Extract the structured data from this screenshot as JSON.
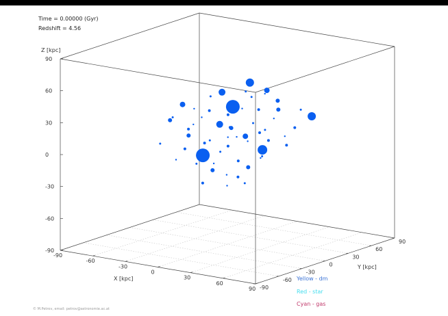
{
  "header": {
    "time_label": "Time = 0.00000 (Gyr)",
    "redshift_label": "Redshift = 4.56"
  },
  "chart_data": {
    "type": "scatter",
    "title": "",
    "projection": "3d",
    "grid": true,
    "zlabel": "Z [kpc]",
    "xlabel": "X [kpc]",
    "ylabel": "Y [kpc]",
    "zlim": [
      -90,
      90
    ],
    "xlim": [
      -90,
      90
    ],
    "ylim": [
      -90,
      90
    ],
    "z_ticks": [
      "90",
      "60",
      "30",
      "0",
      "-30",
      "-60",
      "-90"
    ],
    "x_ticks": [
      "-90",
      "-60",
      "-30",
      "0",
      "30",
      "60",
      "90"
    ],
    "y_ticks": [
      "-90",
      "-60",
      "-30",
      "0",
      "30",
      "60",
      "90"
    ],
    "legend_placement": "bottom-right",
    "legend": [
      {
        "label": "Yellow - dm",
        "color": "#3b73d6"
      },
      {
        "label": "Red   - star",
        "color": "#44ddee"
      },
      {
        "label": "Cyan  - gas",
        "color": "#c0386a"
      }
    ],
    "marker_color": "#0a5ff0",
    "series": [
      {
        "points": [
          {
            "x": 5,
            "y": 0,
            "z": 40,
            "size": 10
          },
          {
            "x": -12,
            "y": -15,
            "z": -5,
            "size": 10
          },
          {
            "x": 18,
            "y": 20,
            "z": -3,
            "size": 7
          },
          {
            "x": 0,
            "y": -10,
            "z": 25,
            "size": 5
          },
          {
            "x": 15,
            "y": 30,
            "z": 50,
            "size": 4
          },
          {
            "x": -20,
            "y": -30,
            "z": 45,
            "size": 4
          },
          {
            "x": 35,
            "y": 60,
            "z": 22,
            "size": 6
          },
          {
            "x": 10,
            "y": 15,
            "z": 60,
            "size": 6
          },
          {
            "x": -5,
            "y": 0,
            "z": 52,
            "size": 5
          },
          {
            "x": 8,
            "y": 12,
            "z": 10,
            "size": 4
          },
          {
            "x": -18,
            "y": -25,
            "z": 15,
            "size": 3
          },
          {
            "x": 22,
            "y": 35,
            "z": 32,
            "size": 3
          },
          {
            "x": -8,
            "y": -8,
            "z": -20,
            "size": 3
          },
          {
            "x": 12,
            "y": 10,
            "z": -18,
            "size": 3
          },
          {
            "x": 0,
            "y": 5,
            "z": 18,
            "size": 3
          },
          {
            "x": -28,
            "y": -35,
            "z": 30,
            "size": 3
          },
          {
            "x": 25,
            "y": 30,
            "z": 42,
            "size": 3
          },
          {
            "x": -3,
            "y": 5,
            "z": 30,
            "size": 2
          },
          {
            "x": 6,
            "y": -5,
            "z": 22,
            "size": 2
          },
          {
            "x": 14,
            "y": 22,
            "z": 12,
            "size": 2
          },
          {
            "x": -14,
            "y": -10,
            "z": 5,
            "size": 2
          },
          {
            "x": 20,
            "y": 25,
            "z": 5,
            "size": 2
          },
          {
            "x": -25,
            "y": -20,
            "z": 0,
            "size": 2
          },
          {
            "x": 4,
            "y": 8,
            "z": -28,
            "size": 2
          },
          {
            "x": -10,
            "y": -18,
            "z": -30,
            "size": 2
          },
          {
            "x": 30,
            "y": 45,
            "z": 14,
            "size": 2
          },
          {
            "x": 16,
            "y": 18,
            "z": 35,
            "size": 2
          },
          {
            "x": -6,
            "y": -15,
            "z": 38,
            "size": 2
          },
          {
            "x": 10,
            "y": 0,
            "z": -10,
            "size": 2
          },
          {
            "x": -16,
            "y": -28,
            "z": 22,
            "size": 2
          },
          {
            "x": 2,
            "y": -2,
            "z": 3,
            "size": 2
          },
          {
            "x": 26,
            "y": 40,
            "z": -2,
            "size": 2
          },
          {
            "x": -30,
            "y": -45,
            "z": 10,
            "size": 1.5
          },
          {
            "x": 8,
            "y": 20,
            "z": 45,
            "size": 1.5
          },
          {
            "x": -12,
            "y": -5,
            "z": 48,
            "size": 1.5
          },
          {
            "x": 18,
            "y": 8,
            "z": 25,
            "size": 1.5
          },
          {
            "x": -2,
            "y": -20,
            "z": 12,
            "size": 1.5
          },
          {
            "x": 12,
            "y": 28,
            "z": -12,
            "size": 1.5
          },
          {
            "x": -20,
            "y": -12,
            "z": -15,
            "size": 1.5
          },
          {
            "x": 6,
            "y": 14,
            "z": -35,
            "size": 1.5
          },
          {
            "x": 24,
            "y": 15,
            "z": 18,
            "size": 1.5
          },
          {
            "x": -8,
            "y": 2,
            "z": -5,
            "size": 1.5
          },
          {
            "x": 14,
            "y": 4,
            "z": 55,
            "size": 1.5
          },
          {
            "x": -22,
            "y": -40,
            "z": 35,
            "size": 1.5
          },
          {
            "x": 32,
            "y": 50,
            "z": 30,
            "size": 1.5
          },
          {
            "x": 0,
            "y": 12,
            "z": 8,
            "size": 1.2
          },
          {
            "x": -4,
            "y": -12,
            "z": -12,
            "size": 1.2
          },
          {
            "x": 10,
            "y": 5,
            "z": 38,
            "size": 1.2
          },
          {
            "x": 20,
            "y": 32,
            "z": 24,
            "size": 1.2
          },
          {
            "x": -15,
            "y": -22,
            "z": 40,
            "size": 1.2
          },
          {
            "x": 5,
            "y": -8,
            "z": -22,
            "size": 1.2
          },
          {
            "x": -26,
            "y": -30,
            "z": -8,
            "size": 1.2
          },
          {
            "x": 28,
            "y": 35,
            "z": 8,
            "size": 1.2
          },
          {
            "x": 3,
            "y": 22,
            "z": 2,
            "size": 1.2
          },
          {
            "x": -10,
            "y": -30,
            "z": 28,
            "size": 1.2
          },
          {
            "x": 16,
            "y": 26,
            "z": 48,
            "size": 1.2
          },
          {
            "x": -6,
            "y": 8,
            "z": -38,
            "size": 1.2
          },
          {
            "x": 9,
            "y": -12,
            "z": 15,
            "size": 1.2
          },
          {
            "x": -18,
            "y": -8,
            "z": 28,
            "size": 1.2
          },
          {
            "x": 22,
            "y": 12,
            "z": -8,
            "size": 1.2
          }
        ]
      }
    ]
  },
  "copyright": "© M.Petrov, email: petrov@astronomie.ac.at"
}
